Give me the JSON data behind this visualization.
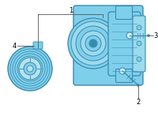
{
  "bg_color": "#ffffff",
  "part_color": "#7ecfea",
  "part_edge_color": "#3a8ab0",
  "part_dark": "#5ab0cc",
  "line_color": "#555555",
  "label_color": "#000000",
  "figsize": [
    2.0,
    1.47
  ],
  "dpi": 100
}
